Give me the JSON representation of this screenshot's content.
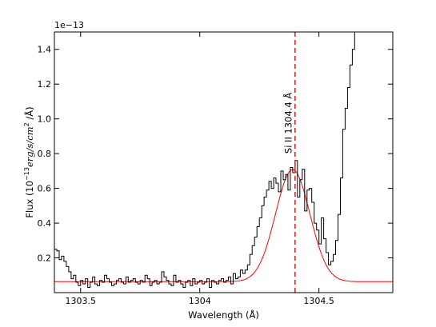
{
  "chart_data": {
    "type": "line",
    "title": "",
    "xlabel": "Wavelength (Å)",
    "ylabel_prefix": "Flux (10",
    "ylabel_exponent": "−13",
    "ylabel_units": "erg/s/cm",
    "ylabel_units_exponent": "2",
    "ylabel_suffix": " /Å)",
    "y_offset_label": "1e−13",
    "xlim": [
      1303.39,
      1304.81
    ],
    "ylim": [
      0.0,
      1.5
    ],
    "x_ticks": [
      1303.5,
      1304.0,
      1304.5
    ],
    "x_tick_labels": [
      "1303.5",
      "1304",
      "1304.5"
    ],
    "y_ticks": [
      0.2,
      0.4,
      0.6,
      0.8,
      1.0,
      1.2,
      1.4
    ],
    "y_tick_labels": [
      "0.2",
      "0.4",
      "0.6",
      "0.8",
      "1.0",
      "1.2",
      "1.4"
    ],
    "grid": false,
    "annotation": {
      "text": "Si II  1304.4 Å",
      "x": 1304.385,
      "y": 0.8,
      "rotation": -90
    },
    "reference_line": {
      "x": 1304.4,
      "color": "#d62728",
      "style": "dashed"
    },
    "series": [
      {
        "style": "steps",
        "color": "#000000",
        "x": [
          1303.39,
          1303.4,
          1303.41,
          1303.42,
          1303.43,
          1303.44,
          1303.45,
          1303.46,
          1303.47,
          1303.48,
          1303.49,
          1303.5,
          1303.51,
          1303.52,
          1303.53,
          1303.54,
          1303.55,
          1303.56,
          1303.57,
          1303.58,
          1303.59,
          1303.6,
          1303.61,
          1303.62,
          1303.63,
          1303.64,
          1303.65,
          1303.66,
          1303.67,
          1303.68,
          1303.69,
          1303.7,
          1303.71,
          1303.72,
          1303.73,
          1303.74,
          1303.75,
          1303.76,
          1303.77,
          1303.78,
          1303.79,
          1303.8,
          1303.81,
          1303.82,
          1303.83,
          1303.84,
          1303.85,
          1303.86,
          1303.87,
          1303.88,
          1303.89,
          1303.9,
          1303.91,
          1303.92,
          1303.93,
          1303.94,
          1303.95,
          1303.96,
          1303.97,
          1303.98,
          1303.99,
          1304.0,
          1304.01,
          1304.02,
          1304.03,
          1304.04,
          1304.05,
          1304.06,
          1304.07,
          1304.08,
          1304.09,
          1304.1,
          1304.11,
          1304.12,
          1304.13,
          1304.14,
          1304.15,
          1304.16,
          1304.17,
          1304.18,
          1304.19,
          1304.2,
          1304.21,
          1304.22,
          1304.23,
          1304.24,
          1304.25,
          1304.26,
          1304.27,
          1304.28,
          1304.29,
          1304.3,
          1304.31,
          1304.32,
          1304.33,
          1304.34,
          1304.35,
          1304.36,
          1304.37,
          1304.38,
          1304.39,
          1304.4,
          1304.41,
          1304.42,
          1304.43,
          1304.44,
          1304.45,
          1304.46,
          1304.47,
          1304.48,
          1304.49,
          1304.5,
          1304.51,
          1304.52,
          1304.53,
          1304.54,
          1304.55,
          1304.56,
          1304.57,
          1304.58,
          1304.59,
          1304.6,
          1304.61,
          1304.62,
          1304.63,
          1304.64,
          1304.65,
          1304.66
        ],
        "y": [
          0.25,
          0.24,
          0.19,
          0.21,
          0.18,
          0.15,
          0.12,
          0.08,
          0.1,
          0.06,
          0.04,
          0.07,
          0.05,
          0.08,
          0.03,
          0.06,
          0.09,
          0.05,
          0.04,
          0.07,
          0.06,
          0.1,
          0.08,
          0.06,
          0.04,
          0.05,
          0.07,
          0.08,
          0.06,
          0.05,
          0.09,
          0.06,
          0.07,
          0.08,
          0.06,
          0.05,
          0.07,
          0.06,
          0.1,
          0.08,
          0.04,
          0.06,
          0.07,
          0.05,
          0.06,
          0.12,
          0.09,
          0.07,
          0.05,
          0.04,
          0.1,
          0.06,
          0.07,
          0.05,
          0.03,
          0.06,
          0.07,
          0.04,
          0.08,
          0.05,
          0.06,
          0.07,
          0.05,
          0.06,
          0.08,
          0.03,
          0.07,
          0.06,
          0.05,
          0.07,
          0.08,
          0.06,
          0.07,
          0.09,
          0.05,
          0.11,
          0.08,
          0.09,
          0.13,
          0.11,
          0.13,
          0.16,
          0.22,
          0.27,
          0.32,
          0.38,
          0.43,
          0.5,
          0.55,
          0.59,
          0.64,
          0.6,
          0.66,
          0.63,
          0.58,
          0.7,
          0.65,
          0.68,
          0.59,
          0.72,
          0.69,
          0.76,
          0.55,
          0.65,
          0.71,
          0.47,
          0.59,
          0.6,
          0.52,
          0.4,
          0.36,
          0.28,
          0.43,
          0.31,
          0.23,
          0.16,
          0.18,
          0.22,
          0.3,
          0.45,
          0.66,
          0.94,
          1.06,
          1.18,
          1.31,
          1.4,
          1.55,
          1.65
        ]
      },
      {
        "style": "line",
        "color": "#ff0000",
        "model": "gaussian",
        "baseline": 0.063,
        "amplitude": 0.645,
        "center": 1304.39,
        "sigma": 0.072
      }
    ]
  }
}
